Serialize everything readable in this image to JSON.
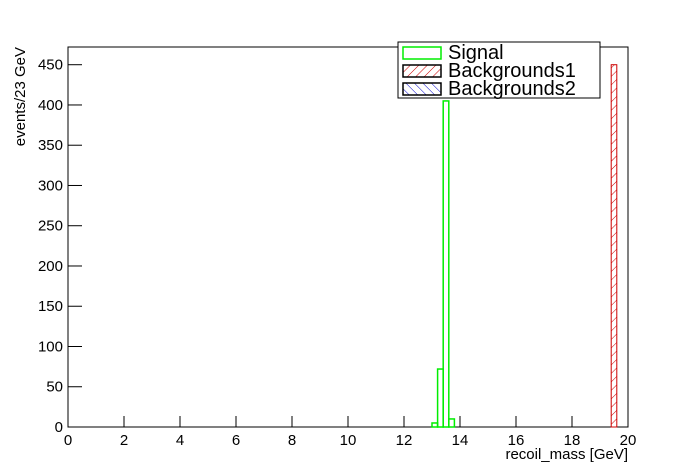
{
  "chart_data": {
    "type": "histogram",
    "x_label": "recoil_mass [GeV]",
    "y_label": "events/23 GeV",
    "bins": [
      0,
      13.0,
      13.2,
      13.4,
      13.6,
      13.8,
      19.4,
      19.6,
      20
    ],
    "series": [
      {
        "name": "Signal",
        "color": "#00ee00",
        "fill": "none",
        "values": [
          0,
          5,
          72,
          405,
          10,
          0,
          0,
          0
        ]
      },
      {
        "name": "Backgrounds1",
        "color": "#cc0000",
        "fill": "hatch",
        "values": [
          0,
          0,
          0,
          0,
          0,
          0,
          450,
          0
        ]
      },
      {
        "name": "Backgrounds2",
        "color": "#0000cc",
        "fill": "hatch",
        "values": [
          0,
          0,
          0,
          0,
          0,
          0,
          0,
          0
        ]
      }
    ],
    "xlim": [
      0,
      20
    ],
    "ylim": [
      0,
      472
    ],
    "xticks": [
      0,
      2,
      4,
      6,
      8,
      10,
      12,
      14,
      16,
      18,
      20
    ],
    "yticks": [
      0,
      50,
      100,
      150,
      200,
      250,
      300,
      350,
      400,
      450
    ],
    "legend": "top-right"
  }
}
